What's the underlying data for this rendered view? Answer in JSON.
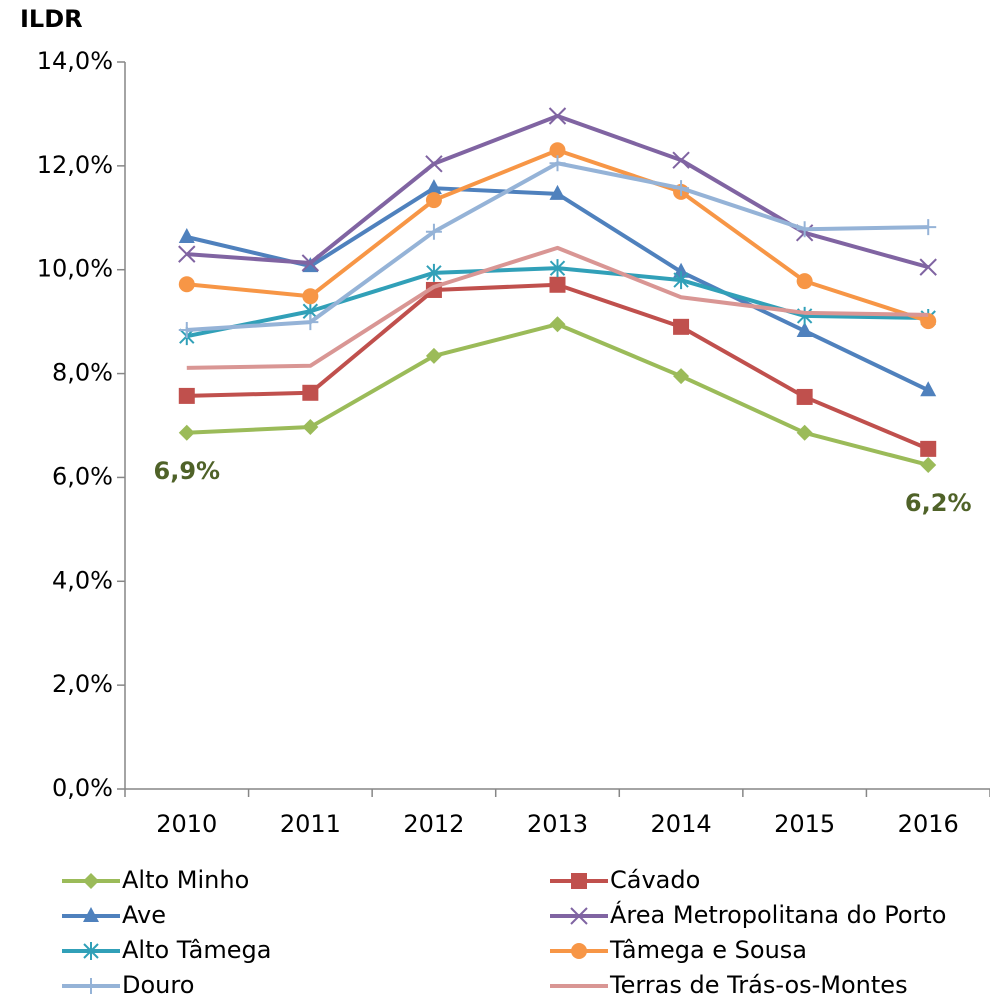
{
  "chart_data": {
    "type": "line",
    "title": "ILDR",
    "categories": [
      "2010",
      "2011",
      "2012",
      "2013",
      "2014",
      "2015",
      "2016"
    ],
    "ylim": [
      0,
      14
    ],
    "yticks": [
      {
        "value": 0,
        "label": "0,0%"
      },
      {
        "value": 2,
        "label": "2,0%"
      },
      {
        "value": 4,
        "label": "4,0%"
      },
      {
        "value": 6,
        "label": "6,0%"
      },
      {
        "value": 8,
        "label": "8,0%"
      },
      {
        "value": 10,
        "label": "10,0%"
      },
      {
        "value": 12,
        "label": "12,0%"
      },
      {
        "value": 14,
        "label": "14,0%"
      }
    ],
    "grid": false,
    "series": [
      {
        "name": "Alto Minho",
        "color": "#9bbb59",
        "marker": "diamond",
        "values": [
          6.86,
          6.97,
          8.34,
          8.95,
          7.95,
          6.86,
          6.24
        ],
        "value_labels": [
          "6,9%",
          null,
          null,
          null,
          null,
          null,
          "6,2%"
        ]
      },
      {
        "name": "Cávado",
        "color": "#c0504d",
        "marker": "square",
        "values": [
          7.57,
          7.63,
          9.61,
          9.71,
          8.9,
          7.55,
          6.55
        ]
      },
      {
        "name": "Ave",
        "color": "#4f81bd",
        "marker": "triangle",
        "values": [
          10.63,
          10.07,
          11.57,
          11.46,
          9.96,
          8.82,
          7.68
        ]
      },
      {
        "name": "Área Metropolitana do Porto",
        "color": "#8064a2",
        "marker": "x",
        "values": [
          10.3,
          10.13,
          12.04,
          12.96,
          12.11,
          10.71,
          10.05
        ]
      },
      {
        "name": "Alto Tâmega",
        "color": "#31a0b8",
        "marker": "star",
        "values": [
          8.72,
          9.2,
          9.94,
          10.03,
          9.8,
          9.11,
          9.07
        ]
      },
      {
        "name": "Tâmega e Sousa",
        "color": "#f79646",
        "marker": "circle",
        "values": [
          9.72,
          9.49,
          11.34,
          12.3,
          11.5,
          9.78,
          9.01
        ]
      },
      {
        "name": "Douro",
        "color": "#95b3d7",
        "marker": "plus",
        "values": [
          8.84,
          8.99,
          10.73,
          12.05,
          11.57,
          10.78,
          10.82
        ]
      },
      {
        "name": "Terras de Trás-os-Montes",
        "color": "#d99694",
        "marker": "none",
        "values": [
          8.11,
          8.15,
          9.67,
          10.42,
          9.47,
          9.17,
          9.13
        ]
      }
    ]
  }
}
